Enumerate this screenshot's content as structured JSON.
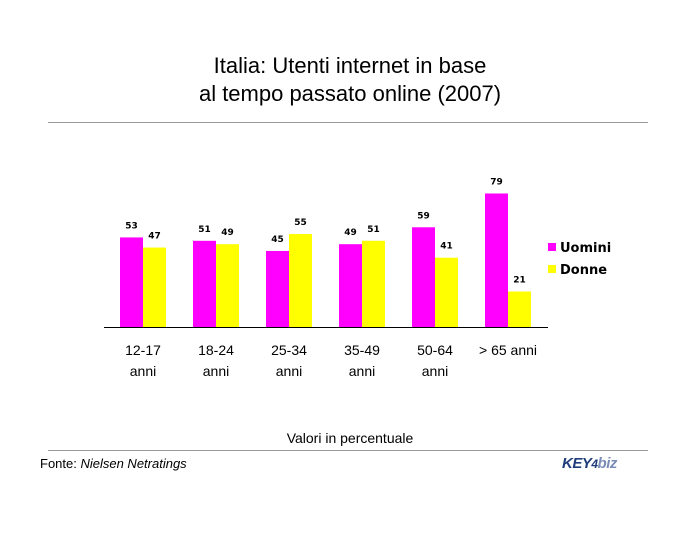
{
  "page": {
    "title_line1": "Italia: Utenti internet in base",
    "title_line2": "al tempo passato online (2007)",
    "note": "Valori in percentuale",
    "source_prefix": "Fonte: ",
    "source_name": "Nielsen Netratings",
    "logo_part1": "KEY",
    "logo_part2": "4",
    "logo_part3": "biz"
  },
  "chart_data": {
    "type": "bar",
    "title": "Italia: Utenti internet in base al tempo passato online (2007)",
    "categories": [
      [
        "12-17",
        "anni"
      ],
      [
        "18-24",
        "anni"
      ],
      [
        "25-34",
        "anni"
      ],
      [
        "35-49",
        "anni"
      ],
      [
        "50-64",
        "anni"
      ],
      [
        "> 65 anni"
      ]
    ],
    "series": [
      {
        "name": "Uomini",
        "color": "#ff00ff",
        "values": [
          53,
          51,
          45,
          49,
          59,
          79
        ]
      },
      {
        "name": "Donne",
        "color": "#ffff00",
        "values": [
          47,
          49,
          55,
          51,
          41,
          21
        ]
      }
    ],
    "data_labels": true,
    "grid": false,
    "legend": "right",
    "ylim": [
      0,
      100
    ]
  }
}
